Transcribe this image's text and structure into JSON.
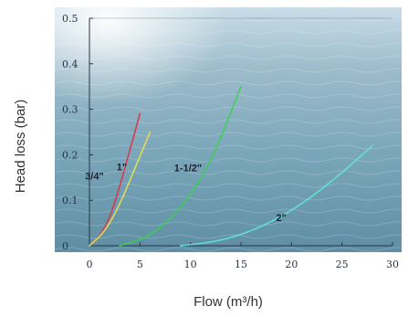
{
  "chart_data": {
    "type": "line",
    "title": "",
    "xlabel": "Flow (m³/h)",
    "ylabel": "Head loss (bar)",
    "xlim": [
      0,
      30
    ],
    "ylim": [
      0,
      0.5
    ],
    "x_ticks": [
      "0",
      "5",
      "10",
      "15",
      "20",
      "25",
      "30"
    ],
    "y_ticks": [
      "0",
      "0.1",
      "0.2",
      "0.3",
      "0.4",
      "0.5"
    ],
    "x_tick_values": [
      0,
      5,
      10,
      15,
      20,
      25,
      30
    ],
    "y_tick_values": [
      0,
      0.1,
      0.2,
      0.3,
      0.4,
      0.5
    ],
    "grid": false,
    "legend": "none",
    "series": [
      {
        "name": "3/4\"",
        "color": "#e0304a",
        "x": [
          0,
          1,
          2,
          3,
          4,
          5
        ],
        "y": [
          0,
          0.02,
          0.06,
          0.13,
          0.21,
          0.29
        ]
      },
      {
        "name": "1\"",
        "color": "#e6e64a",
        "x": [
          0,
          1.5,
          3,
          4.5,
          6
        ],
        "y": [
          0,
          0.03,
          0.09,
          0.17,
          0.25
        ]
      },
      {
        "name": "1-1/2\"",
        "color": "#38d24a",
        "x": [
          3,
          6,
          9,
          12,
          15
        ],
        "y": [
          0,
          0.02,
          0.08,
          0.18,
          0.35
        ]
      },
      {
        "name": "2\"",
        "color": "#5fe8d6",
        "x": [
          9,
          13,
          17,
          21,
          25,
          28
        ],
        "y": [
          0,
          0.01,
          0.04,
          0.09,
          0.16,
          0.22
        ]
      }
    ]
  }
}
